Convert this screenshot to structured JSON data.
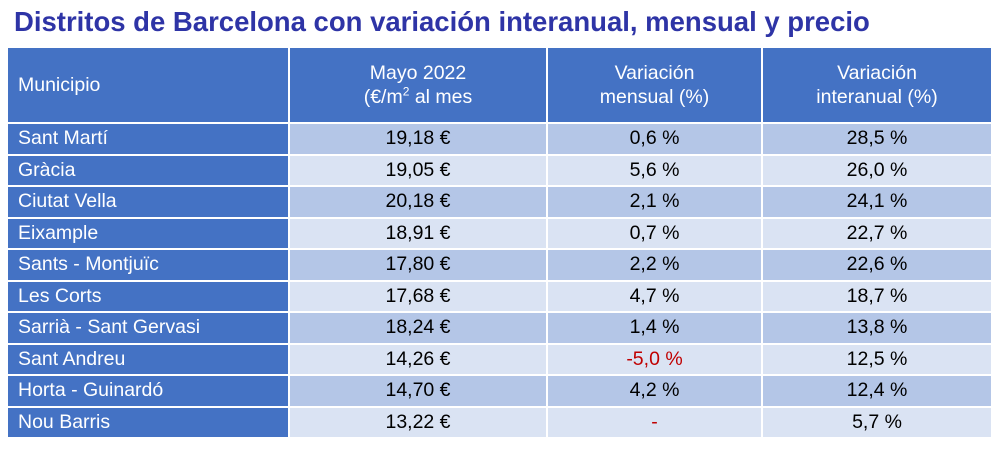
{
  "title": "Distritos de Barcelona con variación interanual, mensual y precio",
  "headers": {
    "municipio": "Municipio",
    "precio_line1": "Mayo 2022",
    "precio_line2_prefix": "(€/m",
    "precio_line2_sup": "2",
    "precio_line2_suffix": " al mes",
    "mensual_line1": "Variación",
    "mensual_line2": "mensual (%)",
    "interanual_line1": "Variación",
    "interanual_line2": "interanual (%)"
  },
  "rows": [
    {
      "municipio": "Sant Martí",
      "precio": "19,18 €",
      "mensual": "0,6 %",
      "interanual": "28,5 %"
    },
    {
      "municipio": "Gràcia",
      "precio": "19,05 €",
      "mensual": "5,6 %",
      "interanual": "26,0 %"
    },
    {
      "municipio": "Ciutat Vella",
      "precio": "20,18 €",
      "mensual": "2,1 %",
      "interanual": "24,1 %"
    },
    {
      "municipio": "Eixample",
      "precio": "18,91 €",
      "mensual": "0,7 %",
      "interanual": "22,7 %"
    },
    {
      "municipio": "Sants - Montjuïc",
      "precio": "17,80 €",
      "mensual": "2,2 %",
      "interanual": "22,6 %"
    },
    {
      "municipio": "Les Corts",
      "precio": "17,68 €",
      "mensual": "4,7 %",
      "interanual": "18,7 %"
    },
    {
      "municipio": "Sarrià - Sant Gervasi",
      "precio": "18,24 €",
      "mensual": "1,4 %",
      "interanual": "13,8 %"
    },
    {
      "municipio": "Sant Andreu",
      "precio": "14,26 €",
      "mensual": "-5,0 %",
      "interanual": "12,5 %"
    },
    {
      "municipio": "Horta - Guinardó",
      "precio": "14,70 €",
      "mensual": "4,2 %",
      "interanual": "12,4 %"
    },
    {
      "municipio": "Nou Barris",
      "precio": "13,22 €",
      "mensual": "-",
      "interanual": "5,7 %"
    }
  ],
  "colors": {
    "title": "#2e34a6",
    "header_bg": "#4472c4",
    "row_odd": "#b4c6e7",
    "row_even": "#dae3f3",
    "negative": "#c00000"
  }
}
